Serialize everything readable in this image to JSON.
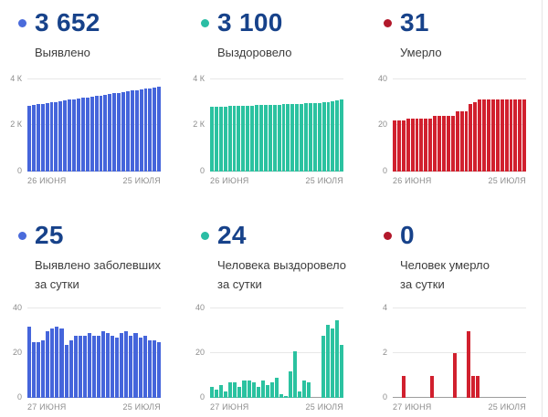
{
  "panels": [
    {
      "value": "3 652",
      "label_line1": "Выявлено",
      "label_line2": "",
      "dot_color": "#4a6bdb"
    },
    {
      "value": "3 100",
      "label_line1": "Выздоровело",
      "label_line2": "",
      "dot_color": "#2abda4"
    },
    {
      "value": "31",
      "label_line1": "Умерло",
      "label_line2": "",
      "dot_color": "#b2182b"
    },
    {
      "value": "25",
      "label_line1": "Выявлено заболевших",
      "label_line2": "за сутки",
      "dot_color": "#4a6bdb"
    },
    {
      "value": "24",
      "label_line1": "Человека выздоровело",
      "label_line2": "за сутки",
      "dot_color": "#2abda4"
    },
    {
      "value": "0",
      "label_line1": "Человек умерло",
      "label_line2": "за сутки",
      "dot_color": "#b2182b"
    }
  ],
  "chart_data": [
    {
      "type": "bar",
      "series_name": "Выявлено (всего)",
      "color": "#4565db",
      "ymax": 4000,
      "yticks": [
        {
          "value": 4000,
          "label": "4 К"
        },
        {
          "value": 2000,
          "label": "2 К"
        },
        {
          "value": 0,
          "label": "0"
        }
      ],
      "x_start": "26 ИЮНЯ",
      "x_end": "25 ИЮЛЯ",
      "values": [
        2839,
        2871,
        2896,
        2921,
        2947,
        2977,
        3008,
        3040,
        3071,
        3095,
        3121,
        3149,
        3177,
        3205,
        3234,
        3262,
        3290,
        3320,
        3349,
        3377,
        3404,
        3433,
        3463,
        3491,
        3520,
        3547,
        3575,
        3601,
        3627,
        3652
      ]
    },
    {
      "type": "bar",
      "series_name": "Выздоровело (всего)",
      "color": "#2bc2a0",
      "ymax": 4000,
      "yticks": [
        {
          "value": 4000,
          "label": "4 К"
        },
        {
          "value": 2000,
          "label": "2 К"
        },
        {
          "value": 0,
          "label": "0"
        }
      ],
      "x_start": "26 ИЮНЯ",
      "x_end": "25 ИЮЛЯ",
      "values": [
        2800,
        2805,
        2809,
        2815,
        2818,
        2825,
        2832,
        2837,
        2845,
        2853,
        2860,
        2865,
        2873,
        2879,
        2886,
        2895,
        2897,
        2898,
        2910,
        2931,
        2934,
        2942,
        2949,
        2949,
        2949,
        2977,
        3010,
        3041,
        3076,
        3100
      ]
    },
    {
      "type": "bar",
      "series_name": "Умерло (всего)",
      "color": "#d1202e",
      "ymax": 40,
      "yticks": [
        {
          "value": 40,
          "label": "40"
        },
        {
          "value": 20,
          "label": "20"
        },
        {
          "value": 0,
          "label": "0"
        }
      ],
      "x_start": "26 ИЮНЯ",
      "x_end": "25 ИЮЛЯ",
      "values": [
        22,
        22,
        22,
        23,
        23,
        23,
        23,
        23,
        23,
        24,
        24,
        24,
        24,
        24,
        26,
        26,
        26,
        29,
        30,
        31,
        31,
        31,
        31,
        31,
        31,
        31,
        31,
        31,
        31,
        31
      ]
    },
    {
      "type": "bar",
      "series_name": "Выявлено заболевших за сутки",
      "color": "#4565db",
      "ymax": 40,
      "yticks": [
        {
          "value": 40,
          "label": "40"
        },
        {
          "value": 20,
          "label": "20"
        },
        {
          "value": 0,
          "label": "0"
        }
      ],
      "x_start": "27 ИЮНЯ",
      "x_end": "25 ИЮЛЯ",
      "values": [
        32,
        25,
        25,
        26,
        30,
        31,
        32,
        31,
        24,
        26,
        28,
        28,
        28,
        29,
        28,
        28,
        30,
        29,
        28,
        27,
        29,
        30,
        28,
        29,
        27,
        28,
        26,
        26,
        25
      ]
    },
    {
      "type": "bar",
      "series_name": "Человека выздоровело за сутки",
      "color": "#2bc2a0",
      "ymax": 40,
      "yticks": [
        {
          "value": 40,
          "label": "40"
        },
        {
          "value": 20,
          "label": "20"
        },
        {
          "value": 0,
          "label": "0"
        }
      ],
      "x_start": "27 ИЮНЯ",
      "x_end": "25 ИЮЛЯ",
      "values": [
        5,
        4,
        6,
        3,
        7,
        7,
        5,
        8,
        8,
        7,
        5,
        8,
        6,
        7,
        9,
        2,
        1,
        12,
        21,
        3,
        8,
        7,
        0,
        0,
        28,
        33,
        31,
        35,
        24
      ]
    },
    {
      "type": "bar",
      "series_name": "Человек умерло за сутки",
      "color": "#d1202e",
      "ymax": 4,
      "yticks": [
        {
          "value": 4,
          "label": "4"
        },
        {
          "value": 2,
          "label": "2"
        },
        {
          "value": 0,
          "label": "0"
        }
      ],
      "x_start": "27 ИЮНЯ",
      "x_end": "25 ИЮЛЯ",
      "values": [
        0,
        0,
        1,
        0,
        0,
        0,
        0,
        0,
        1,
        0,
        0,
        0,
        0,
        2,
        0,
        0,
        3,
        1,
        1,
        0,
        0,
        0,
        0,
        0,
        0,
        0,
        0,
        0,
        0
      ]
    }
  ],
  "colors": {
    "stat_number": "#17428a",
    "axis_text": "#8d8d8d",
    "confirmed": "#4565db",
    "recovered": "#2bc2a0",
    "deaths": "#d1202e"
  }
}
